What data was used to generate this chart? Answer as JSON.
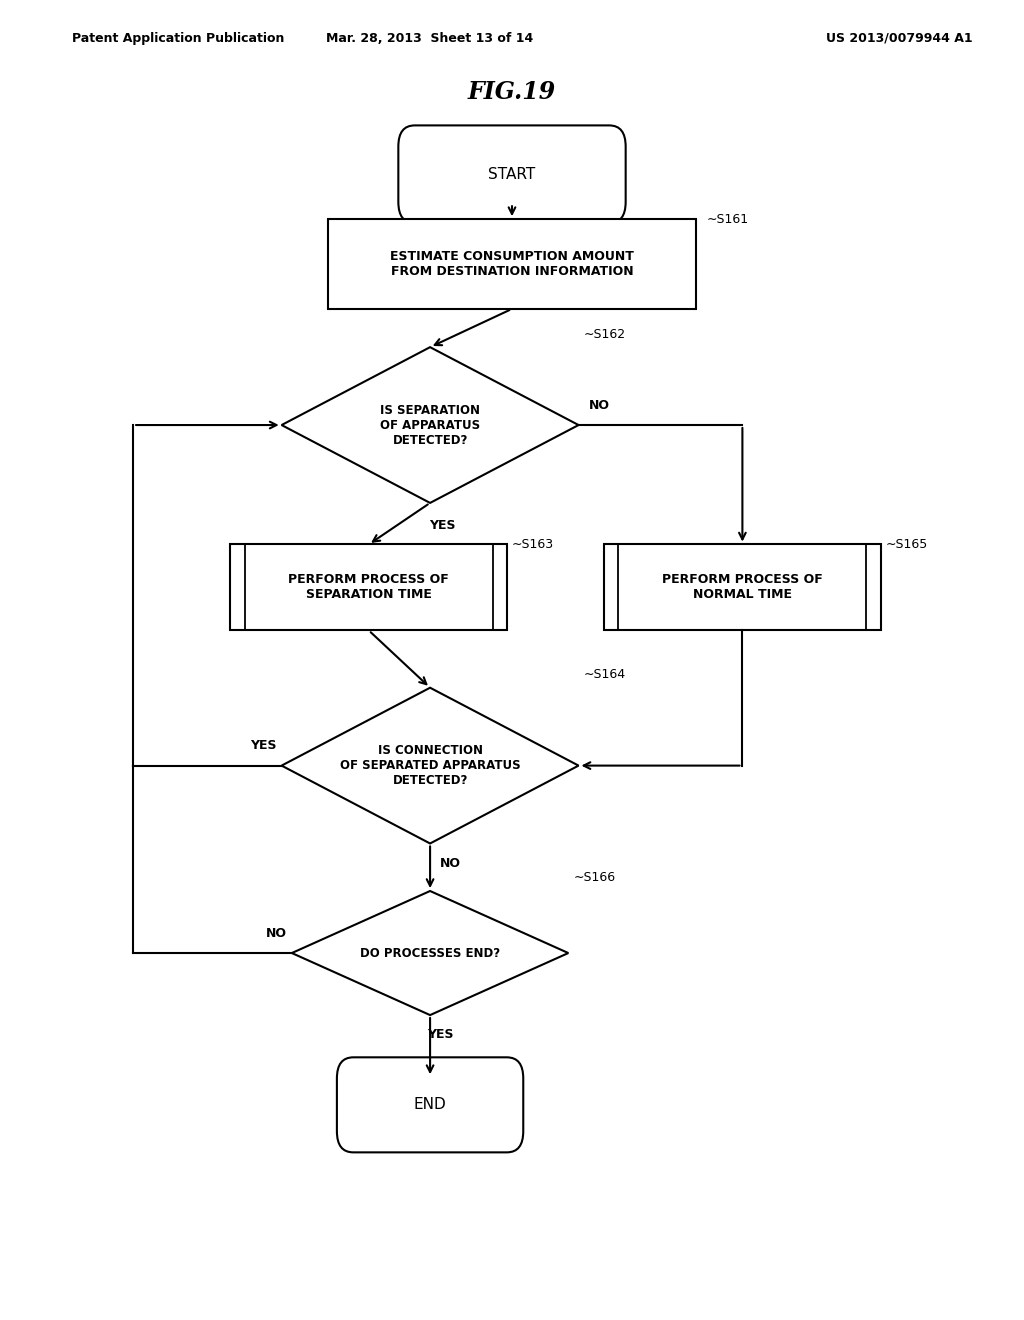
{
  "title": "FIG.19",
  "header_left": "Patent Application Publication",
  "header_mid": "Mar. 28, 2013  Sheet 13 of 14",
  "header_right": "US 2013/0079944 A1",
  "bg_color": "#ffffff",
  "start_label": "START",
  "end_label": "END",
  "s161_text": "ESTIMATE CONSUMPTION AMOUNT\nFROM DESTINATION INFORMATION",
  "s162_text": "IS SEPARATION\nOF APPARATUS\nDETECTED?",
  "s163_text": "PERFORM PROCESS OF\nSEPARATION TIME",
  "s164_text": "IS CONNECTION\nOF SEPARATED APPARATUS\nDETECTED?",
  "s165_text": "PERFORM PROCESS OF\nNORMAL TIME",
  "s166_text": "DO PROCESSES END?",
  "step_labels": {
    "s161": "S161",
    "s162": "S162",
    "s163": "S163",
    "s164": "S164",
    "s165": "S165",
    "s166": "S166"
  }
}
